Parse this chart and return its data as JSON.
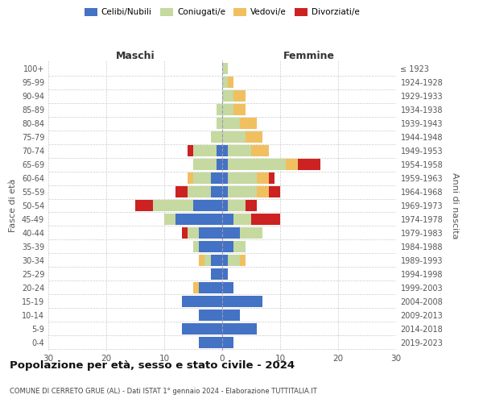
{
  "age_groups": [
    "0-4",
    "5-9",
    "10-14",
    "15-19",
    "20-24",
    "25-29",
    "30-34",
    "35-39",
    "40-44",
    "45-49",
    "50-54",
    "55-59",
    "60-64",
    "65-69",
    "70-74",
    "75-79",
    "80-84",
    "85-89",
    "90-94",
    "95-99",
    "100+"
  ],
  "birth_years": [
    "2019-2023",
    "2014-2018",
    "2009-2013",
    "2004-2008",
    "1999-2003",
    "1994-1998",
    "1989-1993",
    "1984-1988",
    "1979-1983",
    "1974-1978",
    "1969-1973",
    "1964-1968",
    "1959-1963",
    "1954-1958",
    "1949-1953",
    "1944-1948",
    "1939-1943",
    "1934-1938",
    "1929-1933",
    "1924-1928",
    "≤ 1923"
  ],
  "maschi_celibi": [
    4,
    7,
    4,
    7,
    4,
    2,
    2,
    4,
    4,
    8,
    5,
    2,
    2,
    1,
    1,
    0,
    0,
    0,
    0,
    0,
    0
  ],
  "maschi_coniugati": [
    0,
    0,
    0,
    0,
    0,
    0,
    1,
    1,
    2,
    2,
    7,
    4,
    3,
    4,
    4,
    2,
    1,
    1,
    0,
    0,
    0
  ],
  "maschi_vedovi": [
    0,
    0,
    0,
    0,
    1,
    0,
    1,
    0,
    0,
    0,
    0,
    0,
    1,
    0,
    0,
    0,
    0,
    0,
    0,
    0,
    0
  ],
  "maschi_divorziati": [
    0,
    0,
    0,
    0,
    0,
    0,
    0,
    0,
    1,
    0,
    3,
    2,
    0,
    0,
    1,
    0,
    0,
    0,
    0,
    0,
    0
  ],
  "femmine_celibi": [
    2,
    6,
    3,
    7,
    2,
    1,
    1,
    2,
    3,
    2,
    1,
    1,
    1,
    1,
    1,
    0,
    0,
    0,
    0,
    0,
    0
  ],
  "femmine_coniugati": [
    0,
    0,
    0,
    0,
    0,
    0,
    2,
    2,
    4,
    3,
    3,
    5,
    5,
    10,
    4,
    4,
    3,
    2,
    2,
    1,
    1
  ],
  "femmine_vedovi": [
    0,
    0,
    0,
    0,
    0,
    0,
    1,
    0,
    0,
    0,
    0,
    2,
    2,
    2,
    3,
    3,
    3,
    2,
    2,
    1,
    0
  ],
  "femmine_divorziati": [
    0,
    0,
    0,
    0,
    0,
    0,
    0,
    0,
    0,
    5,
    2,
    2,
    1,
    4,
    0,
    0,
    0,
    0,
    0,
    0,
    0
  ],
  "colors": {
    "celibi": "#4472c4",
    "coniugati": "#c5d9a0",
    "vedovi": "#f0c060",
    "divorziati": "#cc2222"
  },
  "xlim": [
    -30,
    30
  ],
  "xticks": [
    -30,
    -20,
    -10,
    0,
    10,
    20,
    30
  ],
  "xticklabels": [
    "30",
    "20",
    "10",
    "0",
    "10",
    "20",
    "30"
  ],
  "title": "Popolazione per età, sesso e stato civile - 2024",
  "subtitle": "COMUNE DI CERRETO GRUE (AL) - Dati ISTAT 1° gennaio 2024 - Elaborazione TUTTITALIA.IT",
  "ylabel_left": "Fasce di età",
  "ylabel_right": "Anni di nascita",
  "maschi_label": "Maschi",
  "femmine_label": "Femmine",
  "legend_labels": [
    "Celibi/Nubili",
    "Coniugati/e",
    "Vedovi/e",
    "Divorziati/e"
  ],
  "bg_color": "#ffffff",
  "grid_color": "#cccccc",
  "center_line_color": "#9999bb"
}
